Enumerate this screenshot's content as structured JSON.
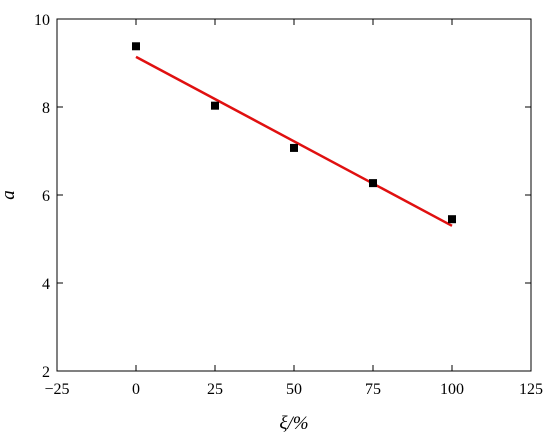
{
  "chart_data": {
    "type": "scatter",
    "title": "",
    "xlabel": "ξ/%",
    "ylabel": "a",
    "xlim": [
      -25,
      125
    ],
    "ylim": [
      2,
      10
    ],
    "xticks": [
      -25,
      0,
      25,
      50,
      75,
      100,
      125
    ],
    "yticks": [
      2,
      4,
      6,
      8,
      10
    ],
    "xtick_labels": [
      "−25",
      "0",
      "25",
      "50",
      "75",
      "100",
      "125"
    ],
    "ytick_labels": [
      "2",
      "4",
      "6",
      "8",
      "10"
    ],
    "grid": false,
    "legend": "none",
    "series": [
      {
        "kind": "scatter",
        "marker": "square",
        "color": "#000000",
        "x": [
          0,
          25,
          50,
          75,
          100
        ],
        "y": [
          9.38,
          8.03,
          7.07,
          6.27,
          5.45
        ]
      },
      {
        "kind": "line",
        "fit": "linear",
        "color": "#e01010",
        "x": [
          0,
          100
        ],
        "y": [
          9.14,
          5.3
        ]
      }
    ]
  }
}
